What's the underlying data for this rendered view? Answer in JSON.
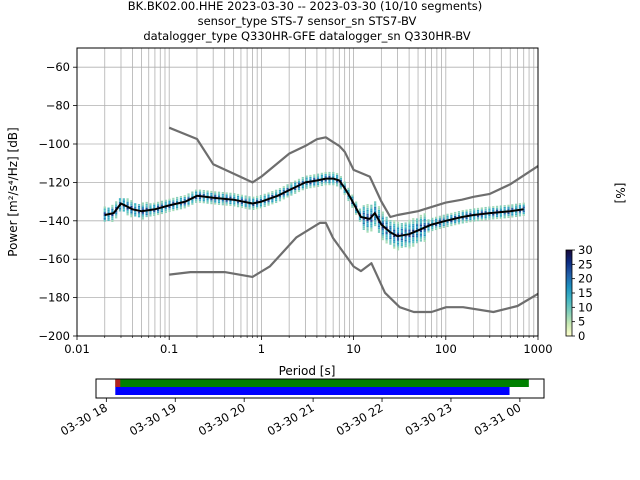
{
  "title_lines": [
    "BK.BK02.00.HHE   2023-03-30 -- 2023-03-30  (10/10 segments)",
    "sensor_type STS-7 sensor_sn STS7-BV",
    "datalogger_type Q330HR-GFE datalogger_sn Q330HR-BV"
  ],
  "chart_data": [
    {
      "type": "heatmap",
      "xlabel": "Period [s]",
      "ylabel": "Power [m²/s⁴/Hz] [dB]",
      "x_scale": "log",
      "xlim": [
        0.01,
        1000
      ],
      "ylim": [
        -200,
        -50
      ],
      "x_ticks": [
        0.01,
        0.1,
        1,
        10,
        100,
        1000
      ],
      "x_tick_labels": [
        "0.01",
        "0.1",
        "1",
        "10",
        "100",
        "1000"
      ],
      "y_ticks": [
        -200,
        -180,
        -160,
        -140,
        -120,
        -100,
        -80,
        -60
      ],
      "y_tick_labels": [
        "−200",
        "−180",
        "−160",
        "−140",
        "−120",
        "−100",
        "−80",
        "−60"
      ],
      "grid": true,
      "colorbar": {
        "label": "[%]",
        "min": 0,
        "max": 30,
        "ticks": [
          0,
          5,
          10,
          15,
          20,
          25,
          30
        ],
        "colormap": [
          "#ffffcc",
          "#c7e9b4",
          "#7fcdbb",
          "#41b6c4",
          "#1d91c0",
          "#225ea8",
          "#0c2c84",
          "#1a0a3a"
        ]
      },
      "series": [
        {
          "name": "",
          "role": "mode",
          "color": "#000000",
          "x": [
            0.02,
            0.025,
            0.03,
            0.04,
            0.05,
            0.07,
            0.1,
            0.15,
            0.2,
            0.3,
            0.5,
            0.8,
            1,
            1.5,
            2,
            3,
            4,
            5,
            6,
            7,
            8,
            9,
            10,
            12,
            15,
            17,
            20,
            25,
            30,
            40,
            50,
            70,
            100,
            150,
            200,
            300,
            500,
            700
          ],
          "y": [
            -137,
            -136,
            -131,
            -134,
            -135,
            -134,
            -132,
            -130,
            -127,
            -128,
            -129,
            -131,
            -130,
            -127,
            -124,
            -120,
            -119,
            -118,
            -118,
            -119,
            -123,
            -127,
            -131,
            -138,
            -139,
            -136,
            -142,
            -146,
            -148,
            -147,
            -145,
            -142,
            -140,
            -138,
            -137,
            -136,
            -135,
            -134
          ]
        },
        {
          "name": "",
          "role": "NHNM",
          "color": "#6e6e6e",
          "x": [
            0.1,
            0.2,
            0.3,
            0.8,
            1,
            2,
            3,
            4,
            5,
            6,
            7,
            8,
            10,
            15,
            20,
            25,
            30,
            50,
            100,
            150,
            200,
            300,
            500,
            1000
          ],
          "y": [
            -91.5,
            -97.4,
            -110.5,
            -120,
            -117,
            -105,
            -101,
            -97.5,
            -96.5,
            -99,
            -101,
            -104,
            -113.5,
            -117,
            -130,
            -138,
            -137,
            -135,
            -130.5,
            -129,
            -127.5,
            -126,
            -121,
            -111.5
          ]
        },
        {
          "name": "",
          "role": "NLNM",
          "color": "#6e6e6e",
          "x": [
            0.1,
            0.17,
            0.4,
            0.8,
            1.24,
            2.4,
            4.3,
            5,
            6,
            10,
            12,
            15.6,
            21.9,
            31.6,
            45,
            70,
            101,
            154,
            328,
            600,
            1000
          ],
          "y": [
            -168,
            -166.7,
            -166.7,
            -169.2,
            -163.7,
            -148.6,
            -141.1,
            -141.1,
            -149,
            -163.8,
            -166.2,
            -162.1,
            -177.5,
            -185,
            -187.5,
            -187.5,
            -185,
            -185,
            -187.5,
            -184.4,
            -178
          ]
        }
      ]
    },
    {
      "type": "timeline",
      "x_tick_labels": [
        "03-30 18",
        "03-30 19",
        "03-30 20",
        "03-30 21",
        "03-30 22",
        "03-30 23",
        "03-31 00"
      ],
      "x_hours": [
        18,
        19,
        20,
        21,
        22,
        23,
        24
      ],
      "xlim_hours": [
        17.85,
        24.35
      ],
      "bars": [
        {
          "color": "#008000",
          "start_hour": 18.13,
          "end_hour": 24.13
        },
        {
          "color": "#0000ff",
          "start_hour": 18.13,
          "end_hour": 23.85
        }
      ],
      "marker_color": "#b22222",
      "marker_hour": 18.13
    }
  ]
}
